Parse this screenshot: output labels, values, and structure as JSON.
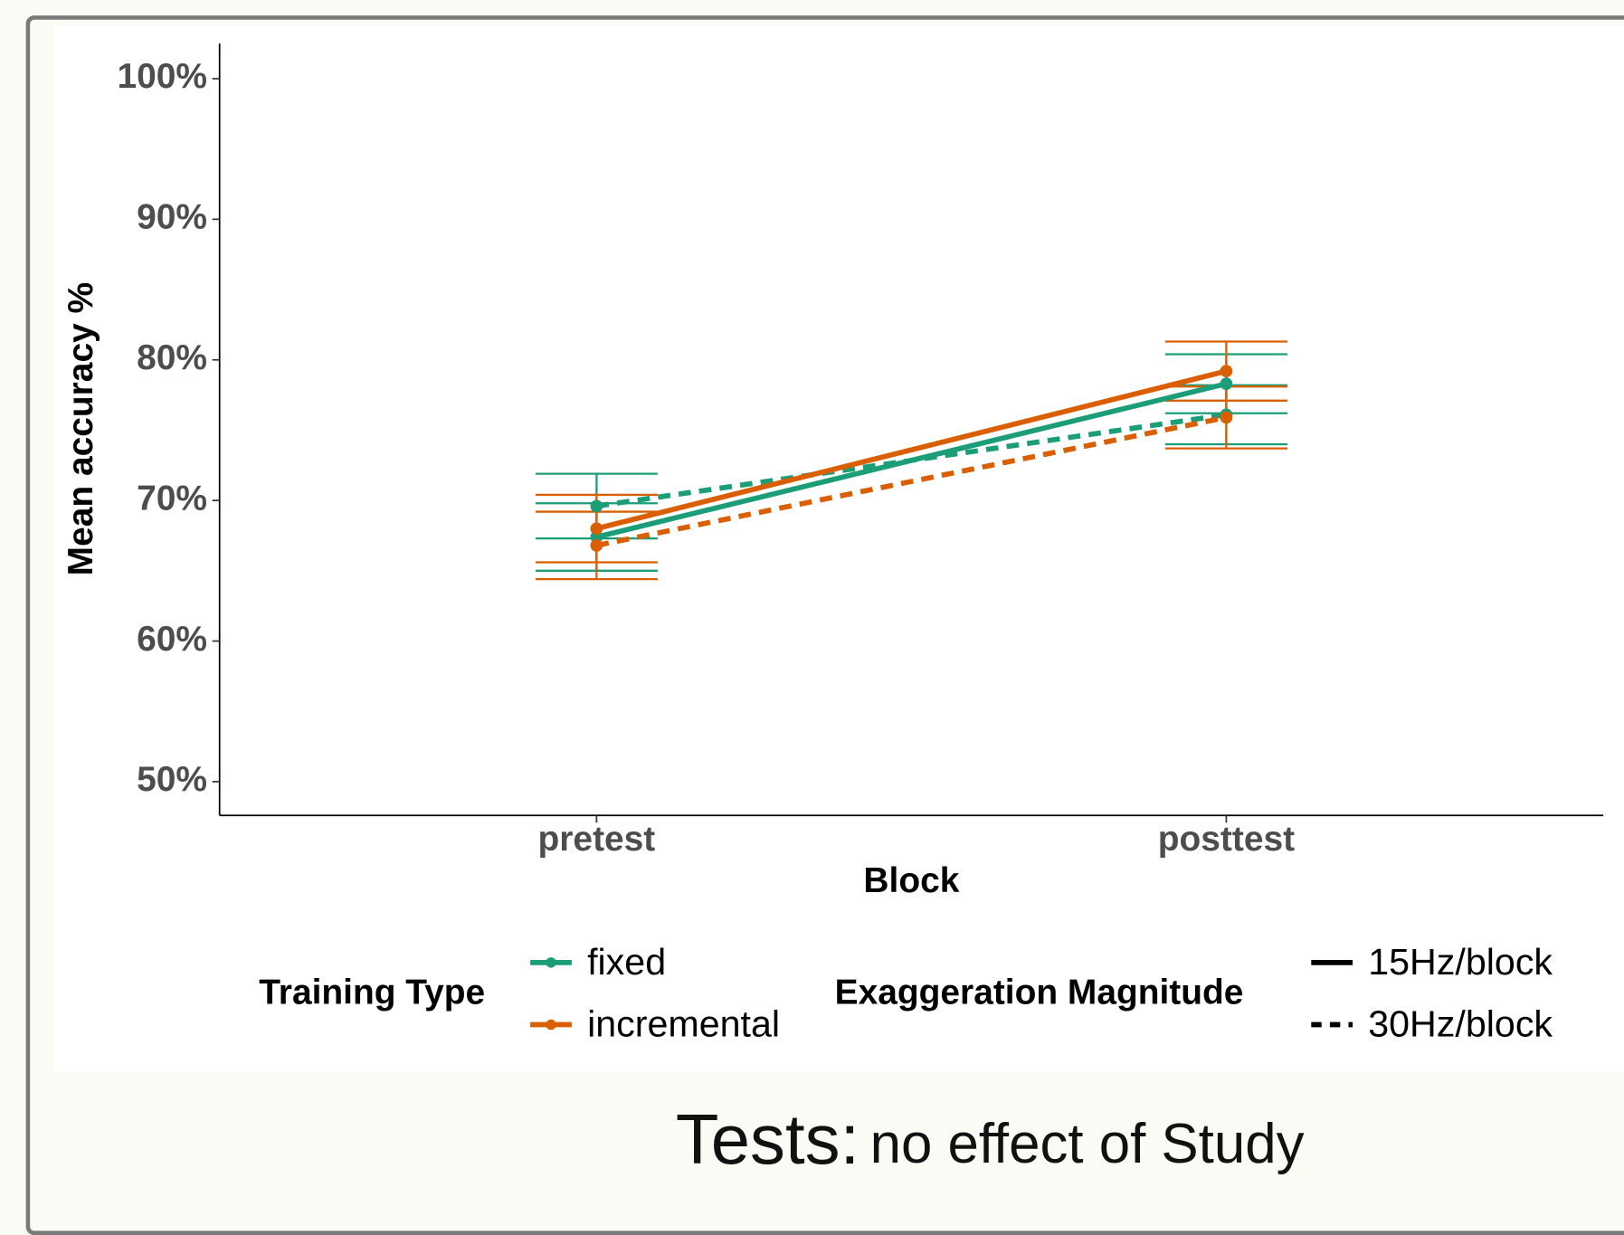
{
  "chart_data": {
    "type": "line",
    "categories": [
      "pretest",
      "posttest"
    ],
    "xlabel": "Block",
    "ylabel": "Mean accuracy %",
    "ylim": [
      47.6,
      102.5
    ],
    "yticks": [
      {
        "value": 50,
        "label": "50%"
      },
      {
        "value": 60,
        "label": "60%"
      },
      {
        "value": 70,
        "label": "70%"
      },
      {
        "value": 80,
        "label": "80%"
      },
      {
        "value": 90,
        "label": "90%"
      },
      {
        "value": 100,
        "label": "100%"
      }
    ],
    "series": [
      {
        "color": "#1b9e77",
        "dash": "solid",
        "values": [
          67.4,
          78.3
        ],
        "errors": [
          2.4,
          2.1
        ]
      },
      {
        "color": "#1b9e77",
        "dash": "dashed",
        "values": [
          69.6,
          76.1
        ],
        "errors": [
          2.3,
          2.1
        ]
      },
      {
        "color": "#d95f02",
        "dash": "solid",
        "values": [
          68.0,
          79.2
        ],
        "errors": [
          2.4,
          2.1
        ]
      },
      {
        "color": "#d95f02",
        "dash": "dashed",
        "values": [
          66.8,
          75.9
        ],
        "errors": [
          2.4,
          2.2
        ]
      }
    ],
    "legends": [
      {
        "title": "Training Type",
        "items": [
          {
            "label": "fixed",
            "color": "#1b9e77",
            "dash": "solid"
          },
          {
            "label": "incremental",
            "color": "#d95f02",
            "dash": "solid"
          }
        ]
      },
      {
        "title": "Exaggeration Magnitude",
        "items": [
          {
            "label": "15Hz/block",
            "color": "#000000",
            "dash": "solid"
          },
          {
            "label": "30Hz/block",
            "color": "#000000",
            "dash": "dashed"
          }
        ]
      }
    ]
  },
  "caption": {
    "lead": "Tests:",
    "text": "no effect of Study"
  }
}
